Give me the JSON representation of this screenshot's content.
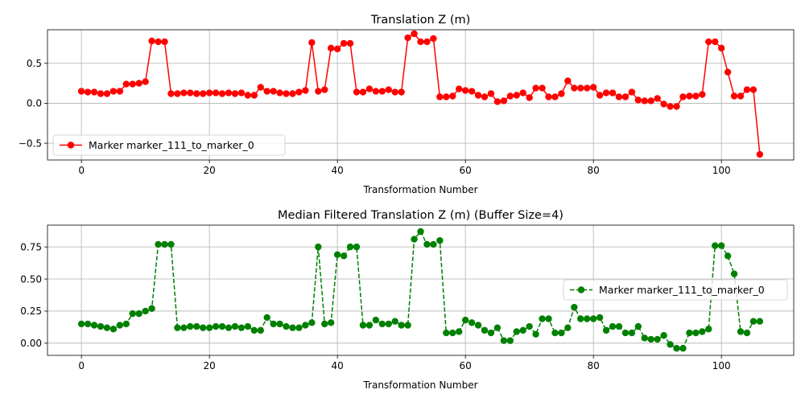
{
  "chart_data": [
    {
      "type": "line",
      "title": "Translation Z (m)",
      "xlabel": "Transformation Number",
      "ylabel": "",
      "xlim": [
        -5.3,
        111.3
      ],
      "ylim": [
        -0.71,
        0.92
      ],
      "xticks": [
        0,
        20,
        40,
        60,
        80,
        100
      ],
      "yticks": [
        -0.5,
        0.0,
        0.5
      ],
      "yticklabels": [
        "−0.5",
        "0.0",
        "0.5"
      ],
      "grid": true,
      "legend_position": "lower-left",
      "color": "#ff0000",
      "linestyle": "solid",
      "marker": "circle",
      "series": [
        {
          "name": "Marker marker_111_to_marker_0",
          "values": [
            0.15,
            0.14,
            0.14,
            0.12,
            0.12,
            0.15,
            0.15,
            0.24,
            0.24,
            0.25,
            0.27,
            0.78,
            0.77,
            0.77,
            0.12,
            0.12,
            0.13,
            0.13,
            0.12,
            0.12,
            0.13,
            0.13,
            0.12,
            0.13,
            0.12,
            0.13,
            0.1,
            0.1,
            0.2,
            0.15,
            0.15,
            0.13,
            0.12,
            0.12,
            0.14,
            0.16,
            0.76,
            0.15,
            0.17,
            0.69,
            0.68,
            0.75,
            0.75,
            0.14,
            0.14,
            0.18,
            0.15,
            0.15,
            0.17,
            0.14,
            0.14,
            0.82,
            0.87,
            0.77,
            0.77,
            0.81,
            0.08,
            0.08,
            0.09,
            0.18,
            0.16,
            0.15,
            0.1,
            0.08,
            0.12,
            0.02,
            0.03,
            0.09,
            0.1,
            0.13,
            0.07,
            0.19,
            0.19,
            0.08,
            0.08,
            0.12,
            0.28,
            0.19,
            0.19,
            0.19,
            0.2,
            0.1,
            0.13,
            0.13,
            0.08,
            0.08,
            0.14,
            0.04,
            0.03,
            0.03,
            0.06,
            -0.01,
            -0.04,
            -0.04,
            0.08,
            0.09,
            0.09,
            0.11,
            0.77,
            0.77,
            0.69,
            0.39,
            0.09,
            0.09,
            0.17,
            0.17,
            -0.64
          ]
        }
      ]
    },
    {
      "type": "line",
      "title": "Median Filtered Translation Z (m) (Buffer Size=4)",
      "xlabel": "Transformation Number",
      "ylabel": "",
      "xlim": [
        -5.3,
        111.3
      ],
      "ylim": [
        -0.095,
        0.92
      ],
      "xticks": [
        0,
        20,
        40,
        60,
        80,
        100
      ],
      "yticks": [
        0.0,
        0.25,
        0.5,
        0.75
      ],
      "yticklabels": [
        "0.00",
        "0.25",
        "0.50",
        "0.75"
      ],
      "grid": true,
      "legend_position": "center-right",
      "color": "#008000",
      "linestyle": "dashed",
      "marker": "circle",
      "series": [
        {
          "name": "Marker marker_111_to_marker_0",
          "values": [
            0.15,
            0.15,
            0.14,
            0.13,
            0.12,
            0.11,
            0.14,
            0.15,
            0.23,
            0.23,
            0.25,
            0.27,
            0.77,
            0.77,
            0.77,
            0.12,
            0.12,
            0.13,
            0.13,
            0.12,
            0.12,
            0.13,
            0.13,
            0.12,
            0.13,
            0.12,
            0.13,
            0.1,
            0.1,
            0.2,
            0.15,
            0.15,
            0.13,
            0.12,
            0.12,
            0.14,
            0.16,
            0.75,
            0.15,
            0.16,
            0.69,
            0.68,
            0.75,
            0.75,
            0.14,
            0.14,
            0.18,
            0.15,
            0.15,
            0.17,
            0.14,
            0.14,
            0.81,
            0.87,
            0.77,
            0.77,
            0.8,
            0.08,
            0.08,
            0.09,
            0.18,
            0.16,
            0.14,
            0.1,
            0.08,
            0.12,
            0.02,
            0.02,
            0.09,
            0.1,
            0.13,
            0.07,
            0.19,
            0.19,
            0.08,
            0.08,
            0.12,
            0.28,
            0.19,
            0.19,
            0.19,
            0.2,
            0.1,
            0.13,
            0.13,
            0.08,
            0.08,
            0.13,
            0.04,
            0.03,
            0.03,
            0.06,
            -0.01,
            -0.04,
            -0.04,
            0.08,
            0.08,
            0.09,
            0.11,
            0.76,
            0.76,
            0.68,
            0.54,
            0.09,
            0.08,
            0.17,
            0.17
          ]
        }
      ]
    }
  ]
}
